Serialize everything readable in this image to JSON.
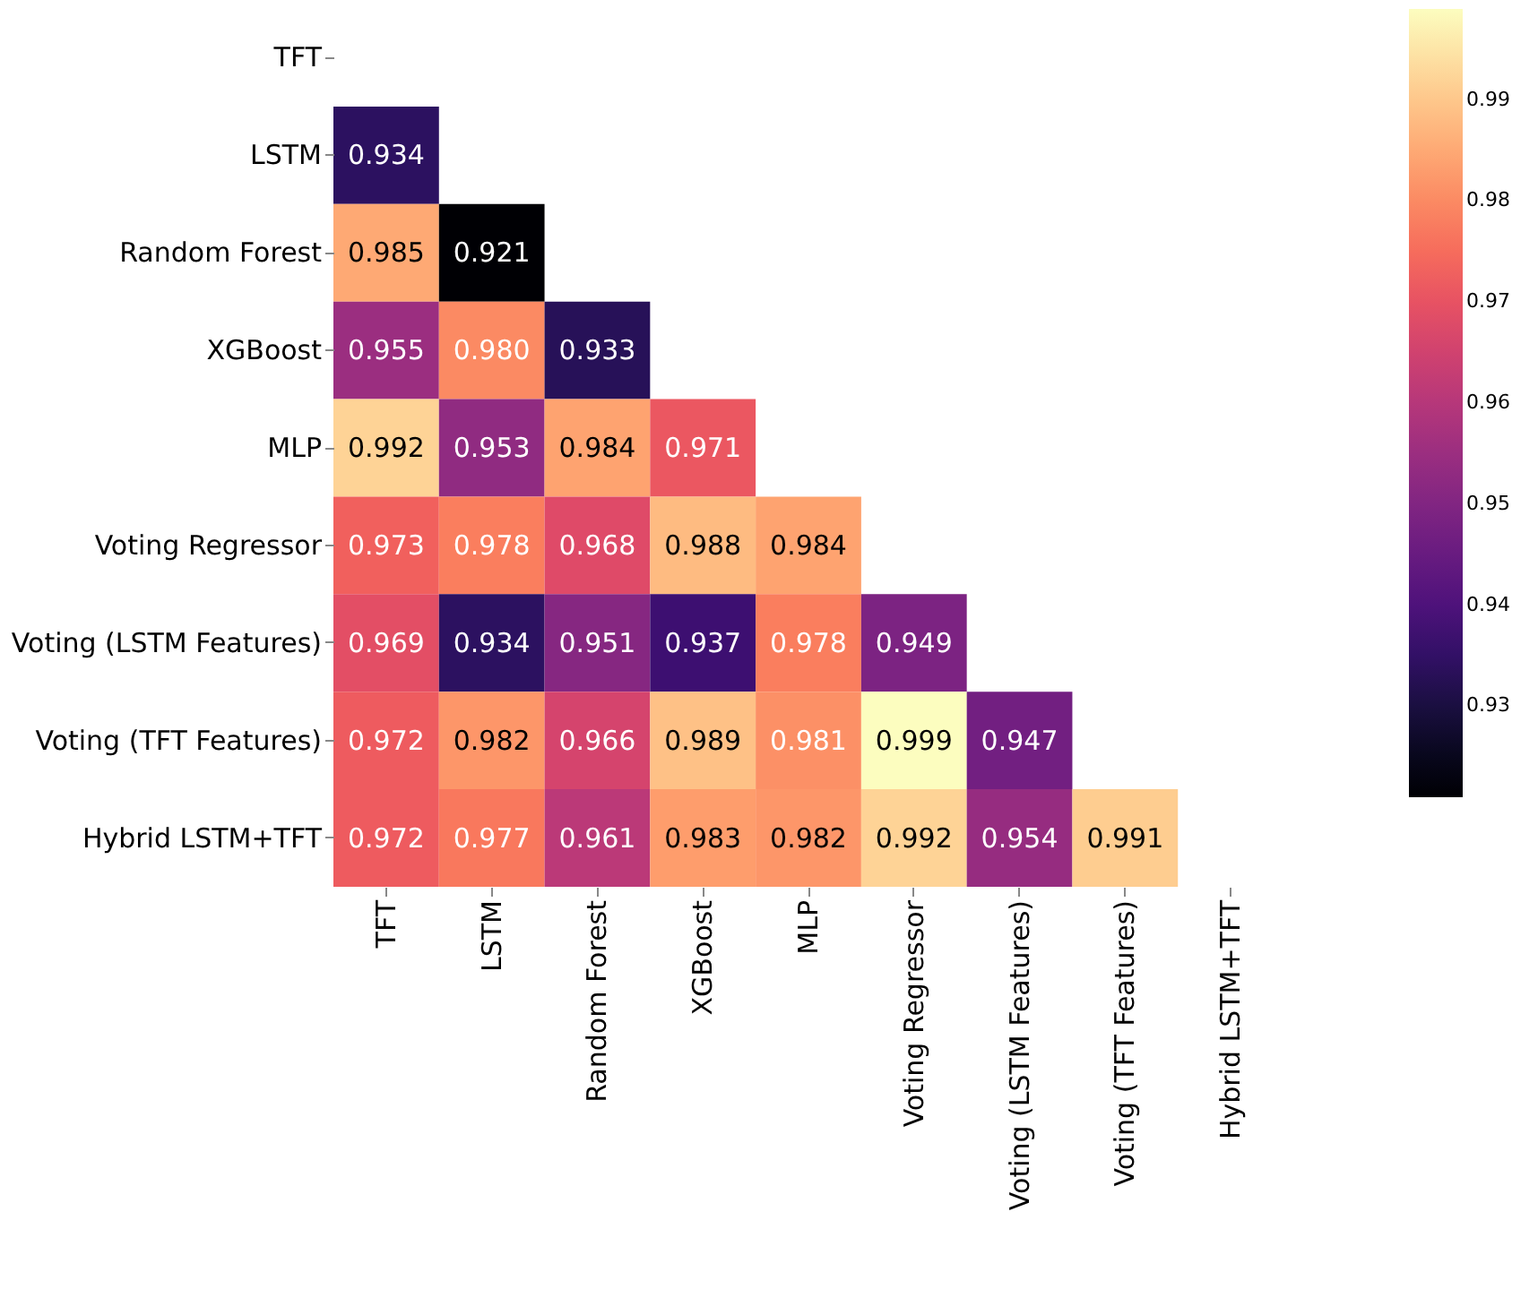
{
  "chart_data": {
    "type": "heatmap",
    "categories": [
      "TFT",
      "LSTM",
      "Random Forest",
      "XGBoost",
      "MLP",
      "Voting Regressor",
      "Voting (LSTM Features)",
      "Voting (TFT Features)",
      "Hybrid LSTM+TFT"
    ],
    "y_categories": [
      "TFT",
      "LSTM",
      "Random Forest",
      "XGBoost",
      "MLP",
      "Voting Regressor",
      "Voting (LSTM Features)",
      "Voting (TFT Features)",
      "Hybrid LSTM+TFT"
    ],
    "cells": [
      [
        null,
        null,
        null,
        null,
        null,
        null,
        null,
        null,
        null
      ],
      [
        0.934,
        null,
        null,
        null,
        null,
        null,
        null,
        null,
        null
      ],
      [
        0.985,
        0.921,
        null,
        null,
        null,
        null,
        null,
        null,
        null
      ],
      [
        0.955,
        0.98,
        0.933,
        null,
        null,
        null,
        null,
        null,
        null
      ],
      [
        0.992,
        0.953,
        0.984,
        0.971,
        null,
        null,
        null,
        null,
        null
      ],
      [
        0.973,
        0.978,
        0.968,
        0.988,
        0.984,
        null,
        null,
        null,
        null
      ],
      [
        0.969,
        0.934,
        0.951,
        0.937,
        0.978,
        0.949,
        null,
        null,
        null
      ],
      [
        0.972,
        0.982,
        0.966,
        0.989,
        0.981,
        0.999,
        0.947,
        null,
        null
      ],
      [
        0.972,
        0.977,
        0.961,
        0.983,
        0.982,
        0.992,
        0.954,
        0.991,
        null
      ]
    ],
    "cell_labels": [
      [
        null,
        null,
        null,
        null,
        null,
        null,
        null,
        null,
        null
      ],
      [
        "0.934",
        null,
        null,
        null,
        null,
        null,
        null,
        null,
        null
      ],
      [
        "0.985",
        "0.921",
        null,
        null,
        null,
        null,
        null,
        null,
        null
      ],
      [
        "0.955",
        "0.980",
        "0.933",
        null,
        null,
        null,
        null,
        null,
        null
      ],
      [
        "0.992",
        "0.953",
        "0.984",
        "0.971",
        null,
        null,
        null,
        null,
        null
      ],
      [
        "0.973",
        "0.978",
        "0.968",
        "0.988",
        "0.984",
        null,
        null,
        null,
        null
      ],
      [
        "0.969",
        "0.934",
        "0.951",
        "0.937",
        "0.978",
        "0.949",
        null,
        null,
        null
      ],
      [
        "0.972",
        "0.982",
        "0.966",
        "0.989",
        "0.981",
        "0.999",
        "0.947",
        null,
        null
      ],
      [
        "0.972",
        "0.977",
        "0.961",
        "0.983",
        "0.982",
        "0.992",
        "0.954",
        "0.991",
        null
      ]
    ],
    "clim": [
      0.921,
      0.999
    ],
    "cticks": [
      0.93,
      0.94,
      0.95,
      0.96,
      0.97,
      0.98,
      0.99
    ],
    "data_labels": true
  }
}
